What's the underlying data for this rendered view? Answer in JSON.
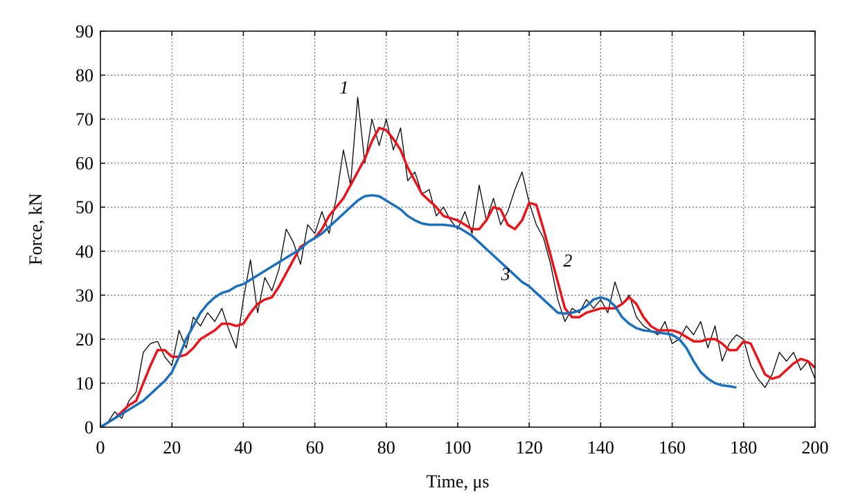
{
  "chart_data": {
    "type": "line",
    "xlabel": "Time, μs",
    "ylabel": "Force, kN",
    "x": [
      0,
      2,
      4,
      6,
      8,
      10,
      12,
      14,
      16,
      18,
      20,
      22,
      24,
      26,
      28,
      30,
      32,
      34,
      36,
      38,
      40,
      42,
      44,
      46,
      48,
      50,
      52,
      54,
      56,
      58,
      60,
      62,
      64,
      66,
      68,
      70,
      72,
      74,
      76,
      78,
      80,
      82,
      84,
      86,
      88,
      90,
      92,
      94,
      96,
      98,
      100,
      102,
      104,
      106,
      108,
      110,
      112,
      114,
      116,
      118,
      120,
      122,
      124,
      126,
      128,
      130,
      132,
      134,
      136,
      138,
      140,
      142,
      144,
      146,
      148,
      150,
      152,
      154,
      156,
      158,
      160,
      162,
      164,
      166,
      168,
      170,
      172,
      174,
      176,
      178,
      180,
      182,
      184,
      186,
      188,
      190,
      192,
      194,
      196,
      198,
      200
    ],
    "series": [
      {
        "name": "1",
        "color": "#000000",
        "width": 1.3,
        "values": [
          0,
          1,
          3.5,
          2,
          6,
          8,
          17,
          19,
          19.5,
          16,
          14,
          22,
          18,
          25,
          23,
          26,
          24,
          27,
          22,
          18,
          29,
          38,
          26,
          34,
          31,
          36,
          45,
          42,
          37,
          46,
          44,
          49,
          44,
          52,
          63,
          55,
          75,
          60,
          70,
          64,
          70,
          63,
          68,
          56,
          58,
          53,
          54,
          48,
          50,
          47,
          45,
          49,
          44,
          55,
          47,
          52,
          46,
          49,
          54,
          58,
          51,
          46,
          43,
          37,
          29,
          24,
          27,
          26,
          29,
          27,
          29,
          26,
          33,
          28,
          30,
          25,
          23,
          22,
          21,
          24,
          19,
          20,
          23,
          21,
          24,
          18,
          23,
          15,
          19,
          21,
          20,
          14,
          11,
          9,
          12,
          17,
          15,
          17,
          13,
          15,
          11
        ]
      },
      {
        "name": "2",
        "color": "#e8141a",
        "width": 3.5,
        "values": [
          0,
          1,
          2,
          3.5,
          5,
          6,
          10,
          14,
          17.5,
          17.5,
          16,
          16,
          16.5,
          18,
          20,
          21,
          22,
          23.5,
          23.5,
          23,
          23.5,
          26,
          28,
          29,
          29.5,
          32,
          35,
          38,
          41,
          42,
          43,
          45,
          48,
          50,
          52,
          55,
          58,
          61,
          65,
          68,
          67.5,
          65.5,
          63,
          59,
          56,
          53,
          51.5,
          50,
          48,
          47.5,
          47,
          46,
          45,
          45,
          47,
          50,
          49.5,
          46,
          45,
          47,
          51,
          50.5,
          45,
          39,
          33,
          27,
          25,
          25,
          26,
          26.5,
          27,
          27,
          27,
          28,
          29.5,
          28,
          25,
          23,
          22,
          22,
          22,
          21.5,
          20.5,
          19.5,
          19.5,
          20,
          20,
          19,
          17.5,
          17.5,
          19.5,
          19,
          15.5,
          12,
          11,
          11.5,
          13,
          14.5,
          15.5,
          15,
          13.5
        ]
      },
      {
        "name": "3",
        "color": "#1a6fbd",
        "width": 3.5,
        "values": [
          0,
          1,
          2,
          3,
          4,
          5,
          6,
          7.5,
          9,
          10.5,
          12.5,
          16,
          20,
          23,
          26,
          28,
          29.5,
          30.5,
          31,
          32,
          32.5,
          33.5,
          34.5,
          35.5,
          36.5,
          37.5,
          38.5,
          39.5,
          40.5,
          42,
          43,
          44,
          45.5,
          47,
          48.5,
          50,
          51.5,
          52.5,
          52.7,
          52.5,
          51.5,
          50.5,
          49.5,
          48,
          47,
          46.3,
          46,
          46,
          46,
          45.8,
          45.5,
          44.5,
          43.5,
          42,
          40.5,
          39,
          37.5,
          36,
          34.5,
          33,
          32,
          30.5,
          29,
          27.5,
          26,
          25.8,
          26,
          26.5,
          27.5,
          29,
          29.5,
          29,
          27.5,
          25,
          23.5,
          22.5,
          22,
          21.8,
          21.5,
          21.3,
          21,
          20,
          18,
          15,
          12.5,
          11,
          10,
          9.5,
          9.3,
          9,
          null,
          null,
          null,
          null,
          null,
          null,
          null,
          null,
          null,
          null,
          null
        ]
      }
    ],
    "xlim": [
      0,
      200
    ],
    "ylim": [
      0,
      90
    ],
    "xticks": [
      0,
      20,
      40,
      60,
      80,
      100,
      120,
      140,
      160,
      180,
      200
    ],
    "yticks": [
      0,
      10,
      20,
      30,
      40,
      50,
      60,
      70,
      80,
      90
    ],
    "grid": true
  }
}
